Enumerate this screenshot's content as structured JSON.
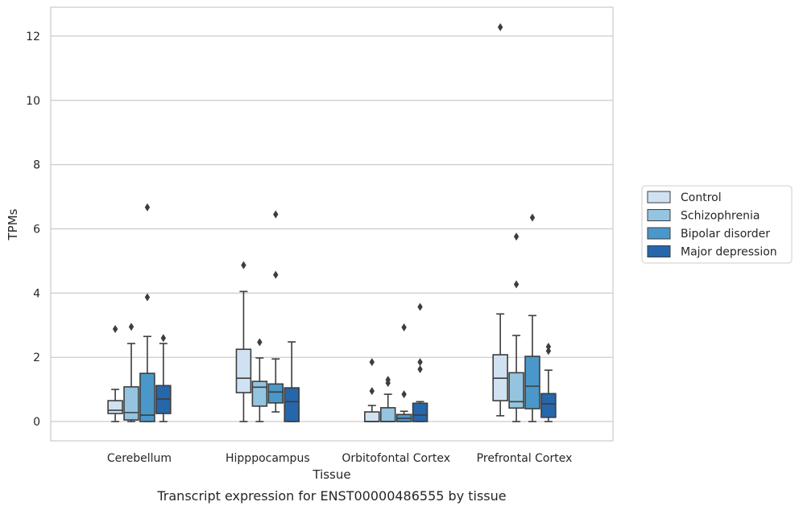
{
  "chart_data": {
    "type": "box",
    "caption": "Transcript expression for ENST00000486555 by tissue",
    "xlabel": "Tissue",
    "ylabel": "TPMs",
    "ylim": [
      -0.6,
      12.9
    ],
    "yticks": [
      0,
      2,
      4,
      6,
      8,
      10,
      12
    ],
    "grid": "horizontal",
    "legend_position": "right",
    "categories": [
      "Cerebellum",
      "Hipppocampus",
      "Orbitofontal Cortex",
      "Prefrontal Cortex"
    ],
    "series": [
      {
        "name": "Control",
        "color": "#d0e1f2",
        "boxes": [
          {
            "whisker_low": 0.0,
            "q1": 0.25,
            "median": 0.35,
            "q3": 0.65,
            "whisker_high": 1.0,
            "outliers": [
              2.88
            ]
          },
          {
            "whisker_low": 0.0,
            "q1": 0.9,
            "median": 1.35,
            "q3": 2.25,
            "whisker_high": 4.05,
            "outliers": [
              4.87
            ]
          },
          {
            "whisker_low": 0.0,
            "q1": 0.0,
            "median": 0.0,
            "q3": 0.3,
            "whisker_high": 0.5,
            "outliers": [
              0.95,
              1.85
            ]
          },
          {
            "whisker_low": 0.18,
            "q1": 0.65,
            "median": 1.35,
            "q3": 2.08,
            "whisker_high": 3.35,
            "outliers": [
              12.28
            ]
          }
        ]
      },
      {
        "name": "Schizophrenia",
        "color": "#94c4df",
        "boxes": [
          {
            "whisker_low": 0.0,
            "q1": 0.05,
            "median": 0.28,
            "q3": 1.08,
            "whisker_high": 2.43,
            "outliers": [
              2.95
            ]
          },
          {
            "whisker_low": 0.0,
            "q1": 0.48,
            "median": 1.07,
            "q3": 1.25,
            "whisker_high": 1.98,
            "outliers": [
              2.47
            ]
          },
          {
            "whisker_low": 0.0,
            "q1": 0.0,
            "median": 0.0,
            "q3": 0.43,
            "whisker_high": 0.85,
            "outliers": [
              1.2,
              1.3
            ]
          },
          {
            "whisker_low": 0.0,
            "q1": 0.42,
            "median": 0.62,
            "q3": 1.52,
            "whisker_high": 2.68,
            "outliers": [
              4.27,
              5.76
            ]
          }
        ]
      },
      {
        "name": "Bipolar disorder",
        "color": "#4a98c9",
        "boxes": [
          {
            "whisker_low": 0.0,
            "q1": 0.0,
            "median": 0.2,
            "q3": 1.5,
            "whisker_high": 2.65,
            "outliers": [
              3.87,
              6.67
            ]
          },
          {
            "whisker_low": 0.3,
            "q1": 0.58,
            "median": 0.92,
            "q3": 1.17,
            "whisker_high": 1.95,
            "outliers": [
              4.57,
              6.45
            ]
          },
          {
            "whisker_low": 0.0,
            "q1": 0.0,
            "median": 0.1,
            "q3": 0.22,
            "whisker_high": 0.32,
            "outliers": [
              0.85,
              2.93
            ]
          },
          {
            "whisker_low": 0.0,
            "q1": 0.4,
            "median": 1.1,
            "q3": 2.03,
            "whisker_high": 3.3,
            "outliers": [
              6.35
            ]
          }
        ]
      },
      {
        "name": "Major depression",
        "color": "#2666ab",
        "boxes": [
          {
            "whisker_low": 0.0,
            "q1": 0.25,
            "median": 0.7,
            "q3": 1.12,
            "whisker_high": 2.43,
            "outliers": [
              2.6
            ]
          },
          {
            "whisker_low": 0.0,
            "q1": 0.0,
            "median": 0.62,
            "q3": 1.05,
            "whisker_high": 2.48,
            "outliers": []
          },
          {
            "whisker_low": 0.0,
            "q1": 0.0,
            "median": 0.2,
            "q3": 0.57,
            "whisker_high": 0.62,
            "outliers": [
              1.63,
              1.85,
              3.57
            ]
          },
          {
            "whisker_low": 0.0,
            "q1": 0.13,
            "median": 0.55,
            "q3": 0.87,
            "whisker_high": 1.6,
            "outliers": [
              2.2,
              2.33
            ]
          }
        ]
      }
    ]
  }
}
